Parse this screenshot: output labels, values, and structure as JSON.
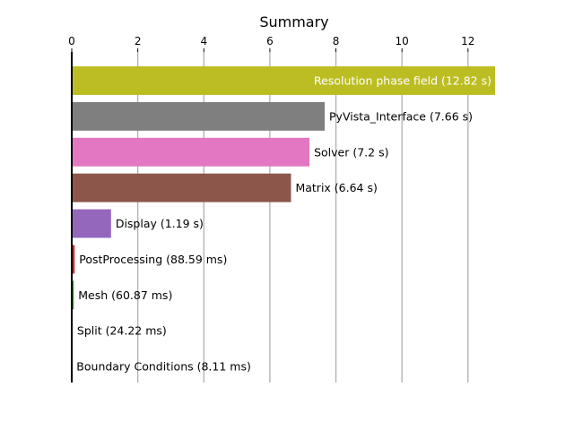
{
  "chart_data": {
    "type": "bar",
    "orientation": "horizontal",
    "title": "Summary",
    "xlabel": "",
    "ylabel": "",
    "xlim": [
      0,
      12.82
    ],
    "xticks": [
      0,
      2,
      4,
      6,
      8,
      10,
      12
    ],
    "x_axis_position": "top",
    "grid": "vertical",
    "categories": [
      "Resolution phase field (12.82 s)",
      "PyVista_Interface (7.66 s)",
      "Solver (7.2 s)",
      "Matrix (6.64 s)",
      "Display (1.19 s)",
      "PostProcessing (88.59 ms)",
      "Mesh (60.87 ms)",
      "Split (24.22 ms)",
      "Boundary Conditions (8.11 ms)"
    ],
    "values": [
      12.82,
      7.66,
      7.2,
      6.64,
      1.19,
      0.08859,
      0.06087,
      0.02422,
      0.00811
    ],
    "colors": [
      "#bcbd22",
      "#7f7f7f",
      "#e377c2",
      "#8c564b",
      "#9467bd",
      "#d62728",
      "#2ca02c",
      "#ff7f0e",
      "#1f77b4"
    ],
    "label_colors": [
      "#ffffff",
      "#000000",
      "#000000",
      "#000000",
      "#000000",
      "#000000",
      "#000000",
      "#000000",
      "#000000"
    ]
  }
}
